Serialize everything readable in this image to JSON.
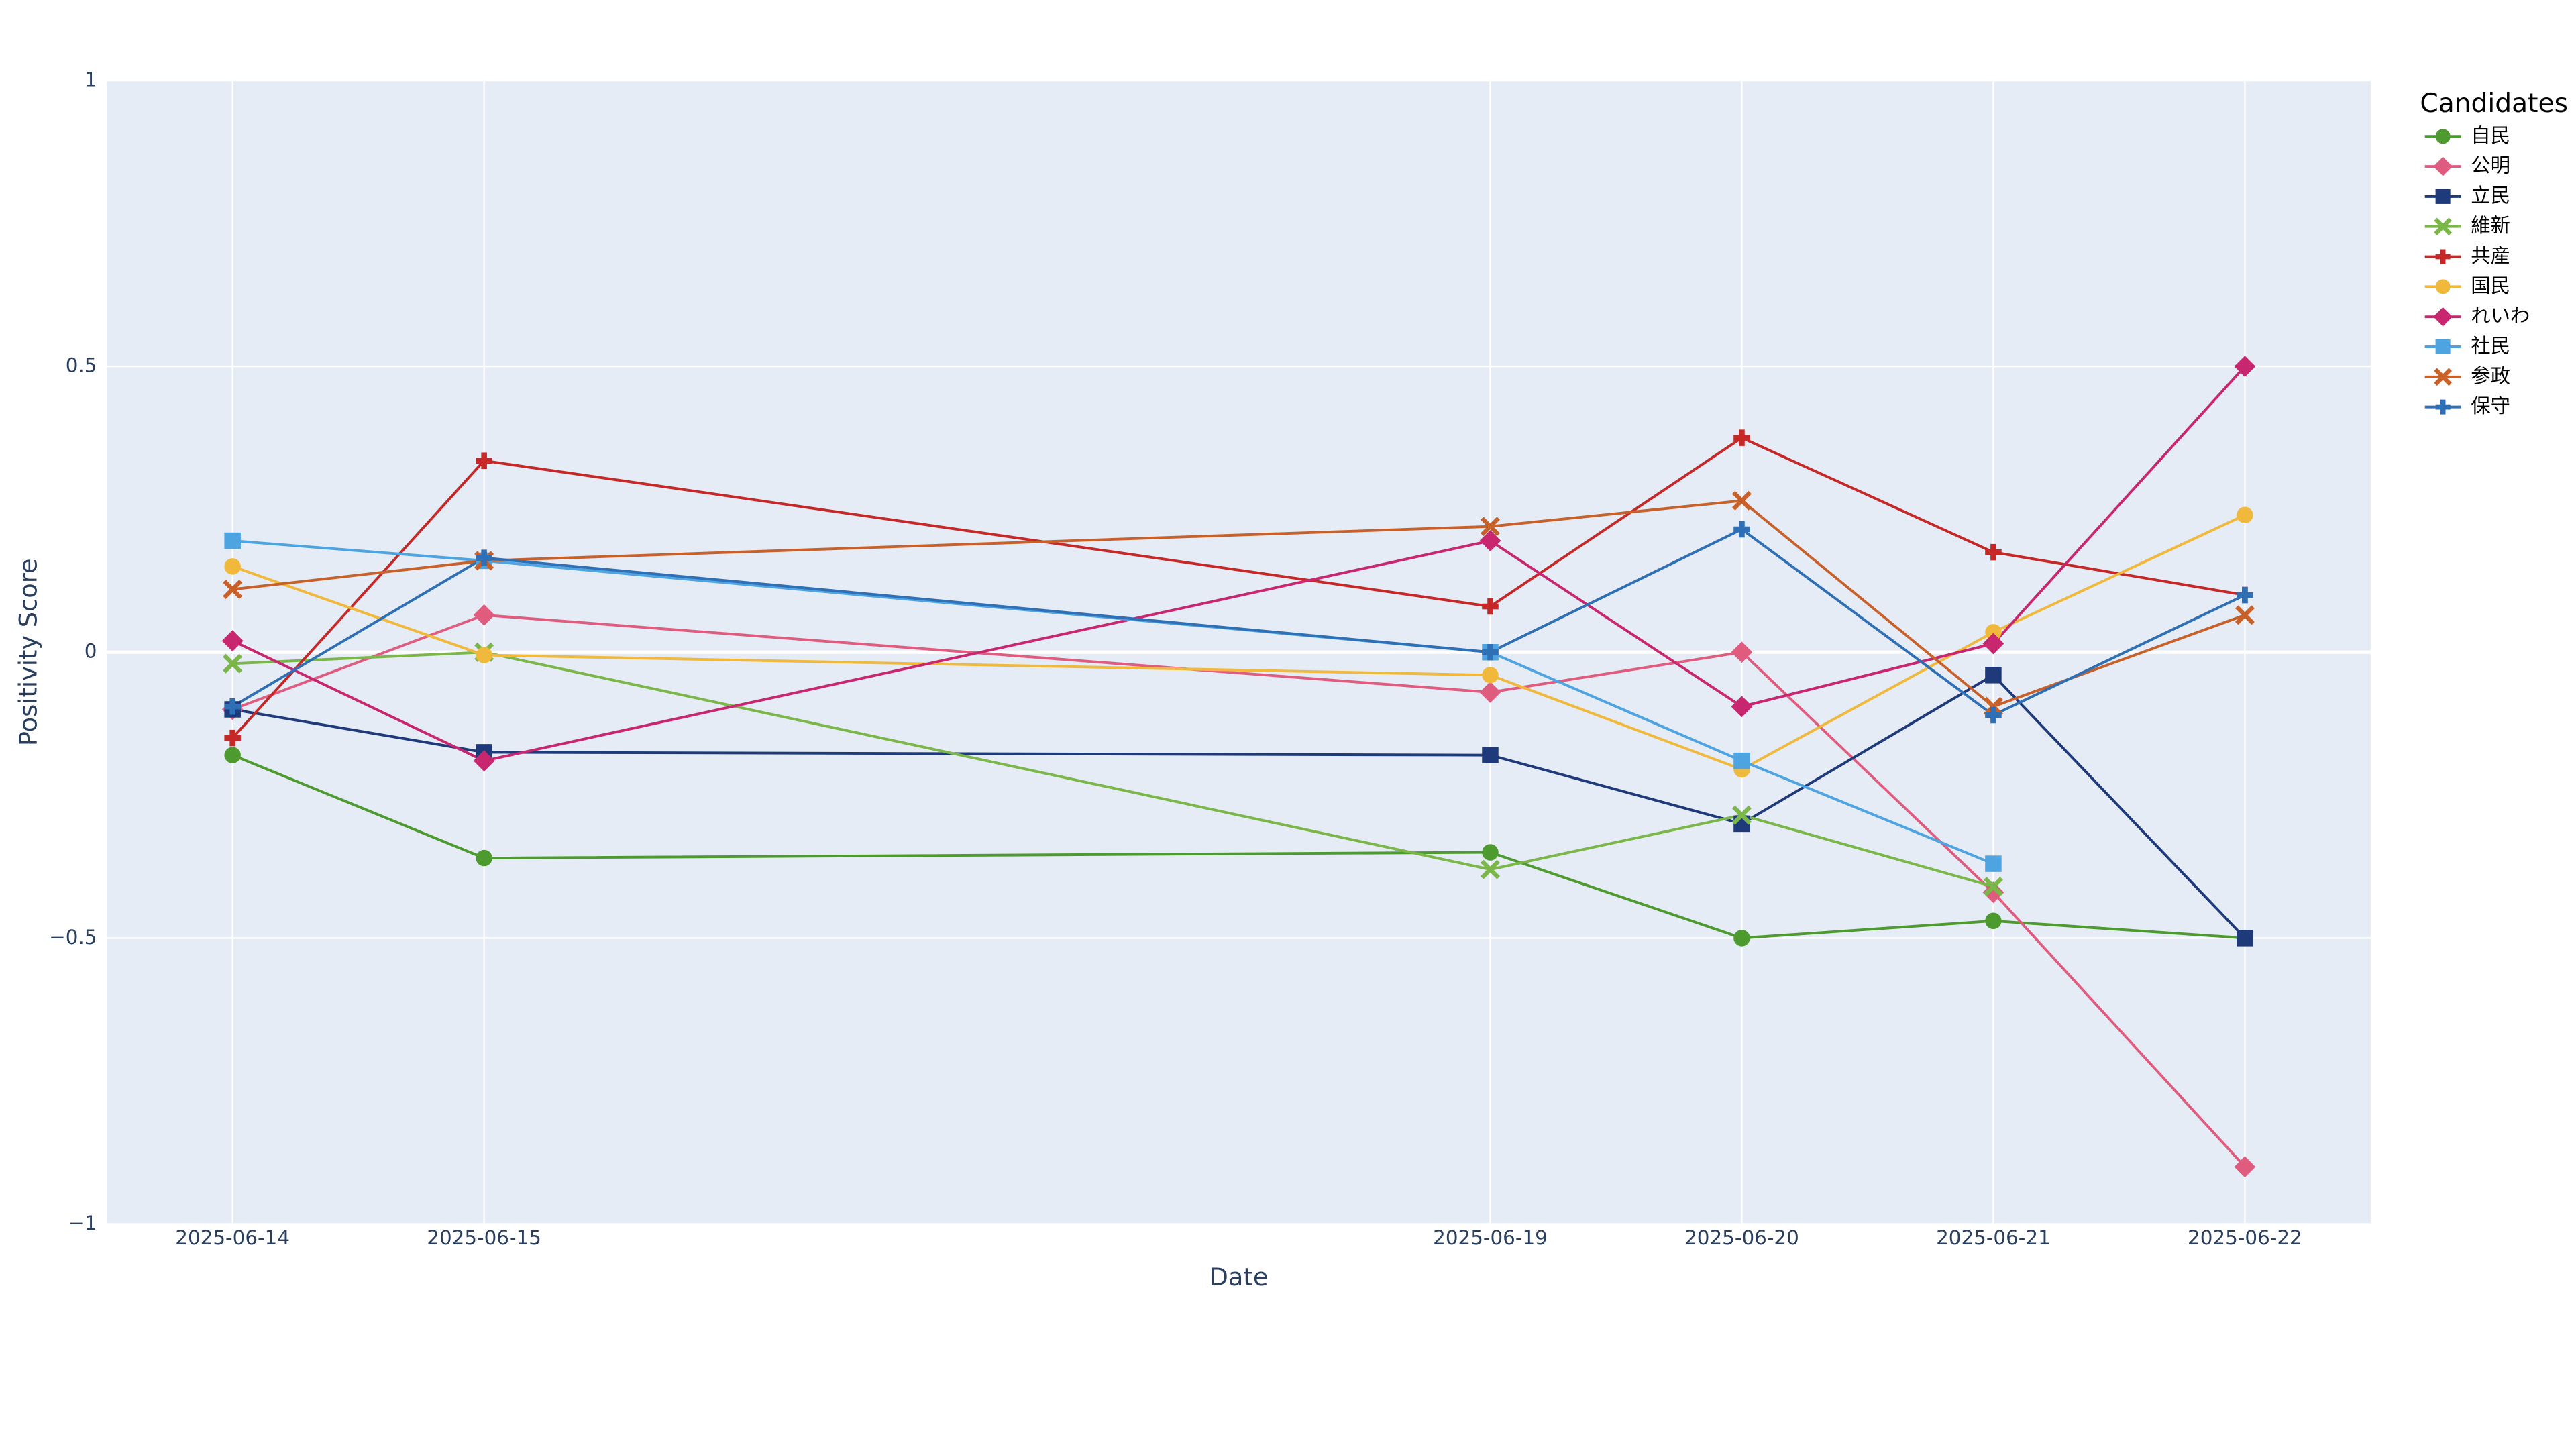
{
  "chart_data": {
    "type": "line",
    "x_label": "Date",
    "y_label": "Positivity Score",
    "legend_title": "Candidates",
    "x": [
      "2025-06-14",
      "2025-06-15",
      "2025-06-19",
      "2025-06-20",
      "2025-06-21",
      "2025-06-22"
    ],
    "xlim": [
      "2025-06-13T12:00",
      "2025-06-22T12:00"
    ],
    "ylim": [
      -1,
      1
    ],
    "yticks": [
      {
        "value": -1,
        "label": "−1"
      },
      {
        "value": -0.5,
        "label": "−0.5"
      },
      0,
      0.5,
      1
    ],
    "grid": true,
    "legend": "right",
    "series": [
      {
        "name": "自民",
        "color": "#4d9a2e",
        "marker": "circle",
        "values": [
          -0.18,
          -0.36,
          -0.35,
          -0.5,
          -0.47,
          -0.5
        ]
      },
      {
        "name": "公明",
        "color": "#e05c7f",
        "marker": "diamond",
        "values": [
          -0.1,
          0.065,
          -0.07,
          0,
          -0.42,
          -0.9
        ]
      },
      {
        "name": "立民",
        "color": "#1f3a7a",
        "marker": "square",
        "values": [
          -0.1,
          -0.175,
          -0.18,
          -0.3,
          -0.04,
          -0.5
        ]
      },
      {
        "name": "維新",
        "color": "#7ab648",
        "marker": "x",
        "values": [
          -0.02,
          0,
          -0.38,
          -0.285,
          -0.41,
          null
        ]
      },
      {
        "name": "共産",
        "color": "#c62828",
        "marker": "cross",
        "values": [
          -0.15,
          0.335,
          0.08,
          0.375,
          0.175,
          0.1
        ]
      },
      {
        "name": "国民",
        "color": "#f0b93b",
        "marker": "circle",
        "values": [
          0.15,
          -0.005,
          -0.04,
          -0.205,
          0.035,
          0.24
        ]
      },
      {
        "name": "れいわ",
        "color": "#c8266f",
        "marker": "diamond",
        "values": [
          0.02,
          -0.19,
          0.195,
          -0.095,
          0.015,
          0.5
        ]
      },
      {
        "name": "社民",
        "color": "#4ea4e0",
        "marker": "square",
        "values": [
          0.195,
          0.16,
          0,
          -0.19,
          -0.37,
          null
        ]
      },
      {
        "name": "参政",
        "color": "#c8602a",
        "marker": "x",
        "values": [
          0.11,
          0.16,
          0.22,
          0.265,
          -0.095,
          0.065
        ]
      },
      {
        "name": "保守",
        "color": "#2e6fb5",
        "marker": "cross",
        "values": [
          -0.095,
          0.165,
          0,
          0.215,
          -0.11,
          0.1
        ]
      }
    ]
  }
}
